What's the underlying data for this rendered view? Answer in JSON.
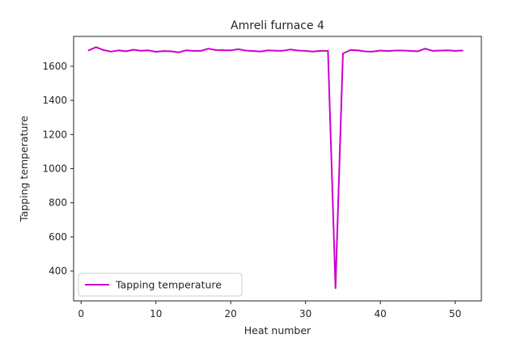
{
  "chart_data": {
    "type": "line",
    "title": "Amreli furnace 4",
    "xlabel": "Heat number",
    "ylabel": "Tapping temperature",
    "xlim": [
      -1,
      53.5
    ],
    "ylim": [
      225,
      1775
    ],
    "xticks": [
      0,
      10,
      20,
      30,
      40,
      50
    ],
    "yticks": [
      400,
      600,
      800,
      1000,
      1200,
      1400,
      1600
    ],
    "grid": false,
    "legend_position": "lower-left",
    "series": [
      {
        "name": "Tapping temperature",
        "color": "#cc00cc",
        "x": [
          1,
          2,
          3,
          4,
          5,
          6,
          7,
          8,
          9,
          10,
          11,
          12,
          13,
          14,
          15,
          16,
          17,
          18,
          19,
          20,
          21,
          22,
          23,
          24,
          25,
          26,
          27,
          28,
          29,
          30,
          31,
          32,
          33,
          34,
          35,
          36,
          37,
          38,
          39,
          40,
          41,
          42,
          43,
          44,
          45,
          46,
          47,
          48,
          49,
          50,
          51
        ],
        "values": [
          1693,
          1712,
          1695,
          1686,
          1693,
          1688,
          1697,
          1691,
          1693,
          1685,
          1689,
          1688,
          1681,
          1693,
          1690,
          1690,
          1703,
          1695,
          1694,
          1693,
          1700,
          1692,
          1689,
          1687,
          1693,
          1691,
          1691,
          1698,
          1692,
          1690,
          1686,
          1690,
          1690,
          300,
          1675,
          1695,
          1693,
          1687,
          1686,
          1692,
          1689,
          1692,
          1692,
          1690,
          1688,
          1703,
          1690,
          1692,
          1693,
          1690,
          1692
        ]
      }
    ]
  }
}
